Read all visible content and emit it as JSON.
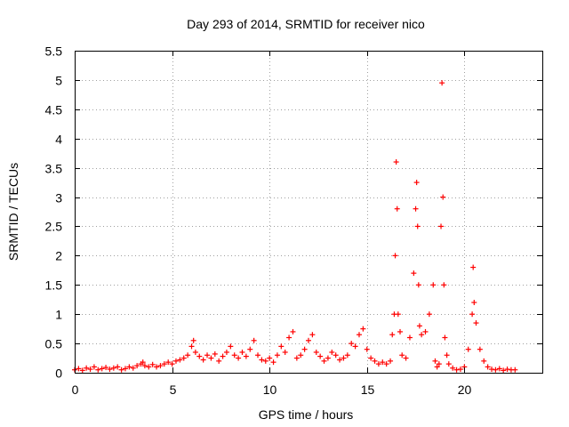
{
  "chart_data": {
    "type": "scatter",
    "title": "Day 293 of 2014, SRMTID for receiver nico",
    "xlabel": "GPS time / hours",
    "ylabel": "SRMTID / TECUs",
    "xlim": [
      0,
      24
    ],
    "ylim": [
      0,
      5.5
    ],
    "grid": true,
    "marker": "+",
    "color": "#ff0000",
    "x_ticks": [
      0,
      5,
      10,
      15,
      20
    ],
    "x_tick_labels": [
      "0",
      "5",
      "10",
      "15",
      "20"
    ],
    "y_ticks": [
      0,
      0.5,
      1,
      1.5,
      2,
      2.5,
      3,
      3.5,
      4,
      4.5,
      5,
      5.5
    ],
    "y_tick_labels": [
      "0",
      "0.5",
      "1",
      "1.5",
      "2",
      "2.5",
      "3",
      "3.5",
      "4",
      "4.5",
      "5",
      "5.5"
    ],
    "series": [
      {
        "name": "SRMTID",
        "x": [
          0.0,
          0.2,
          0.4,
          0.6,
          0.8,
          1.0,
          1.2,
          1.4,
          1.6,
          1.8,
          2.0,
          2.2,
          2.4,
          2.6,
          2.8,
          3.0,
          3.2,
          3.4,
          3.5,
          3.6,
          3.8,
          4.0,
          4.2,
          4.4,
          4.6,
          4.8,
          5.0,
          5.2,
          5.4,
          5.6,
          5.8,
          6.0,
          6.1,
          6.2,
          6.4,
          6.6,
          6.8,
          7.0,
          7.2,
          7.4,
          7.6,
          7.8,
          8.0,
          8.2,
          8.4,
          8.6,
          8.8,
          9.0,
          9.2,
          9.4,
          9.6,
          9.8,
          10.0,
          10.2,
          10.4,
          10.6,
          10.8,
          11.0,
          11.2,
          11.4,
          11.6,
          11.8,
          12.0,
          12.2,
          12.4,
          12.6,
          12.8,
          13.0,
          13.2,
          13.4,
          13.6,
          13.8,
          14.0,
          14.2,
          14.4,
          14.6,
          14.8,
          15.0,
          15.2,
          15.4,
          15.6,
          15.8,
          16.0,
          16.2,
          16.3,
          16.4,
          16.45,
          16.5,
          16.55,
          16.6,
          16.7,
          16.8,
          17.0,
          17.2,
          17.4,
          17.5,
          17.55,
          17.6,
          17.65,
          17.7,
          17.8,
          18.0,
          18.2,
          18.4,
          18.5,
          18.6,
          18.7,
          18.8,
          18.85,
          18.9,
          18.95,
          19.0,
          19.1,
          19.2,
          19.4,
          19.6,
          19.8,
          20.0,
          20.2,
          20.4,
          20.45,
          20.5,
          20.6,
          20.8,
          21.0,
          21.2,
          21.4,
          21.6,
          21.8,
          22.0,
          22.2,
          22.4,
          22.6
        ],
        "y": [
          0.05,
          0.07,
          0.04,
          0.08,
          0.06,
          0.1,
          0.05,
          0.07,
          0.09,
          0.06,
          0.08,
          0.1,
          0.05,
          0.07,
          0.1,
          0.08,
          0.12,
          0.15,
          0.18,
          0.12,
          0.1,
          0.14,
          0.1,
          0.12,
          0.15,
          0.18,
          0.15,
          0.2,
          0.22,
          0.25,
          0.3,
          0.45,
          0.55,
          0.35,
          0.28,
          0.22,
          0.3,
          0.25,
          0.32,
          0.2,
          0.28,
          0.35,
          0.45,
          0.3,
          0.25,
          0.35,
          0.28,
          0.4,
          0.55,
          0.3,
          0.22,
          0.2,
          0.25,
          0.18,
          0.3,
          0.45,
          0.35,
          0.6,
          0.7,
          0.25,
          0.3,
          0.4,
          0.55,
          0.65,
          0.35,
          0.28,
          0.2,
          0.25,
          0.35,
          0.3,
          0.22,
          0.25,
          0.3,
          0.5,
          0.45,
          0.65,
          0.75,
          0.4,
          0.25,
          0.2,
          0.15,
          0.18,
          0.15,
          0.2,
          0.65,
          1.0,
          2.0,
          3.6,
          2.8,
          1.0,
          0.7,
          0.3,
          0.25,
          0.6,
          1.7,
          2.8,
          3.25,
          2.5,
          1.5,
          0.8,
          0.65,
          0.7,
          1.0,
          1.5,
          0.2,
          0.1,
          0.15,
          2.5,
          4.95,
          3.0,
          1.5,
          0.6,
          0.3,
          0.15,
          0.08,
          0.05,
          0.06,
          0.1,
          0.4,
          1.0,
          1.8,
          1.2,
          0.85,
          0.4,
          0.2,
          0.1,
          0.06,
          0.05,
          0.07,
          0.04,
          0.06,
          0.05,
          0.05
        ]
      }
    ]
  }
}
